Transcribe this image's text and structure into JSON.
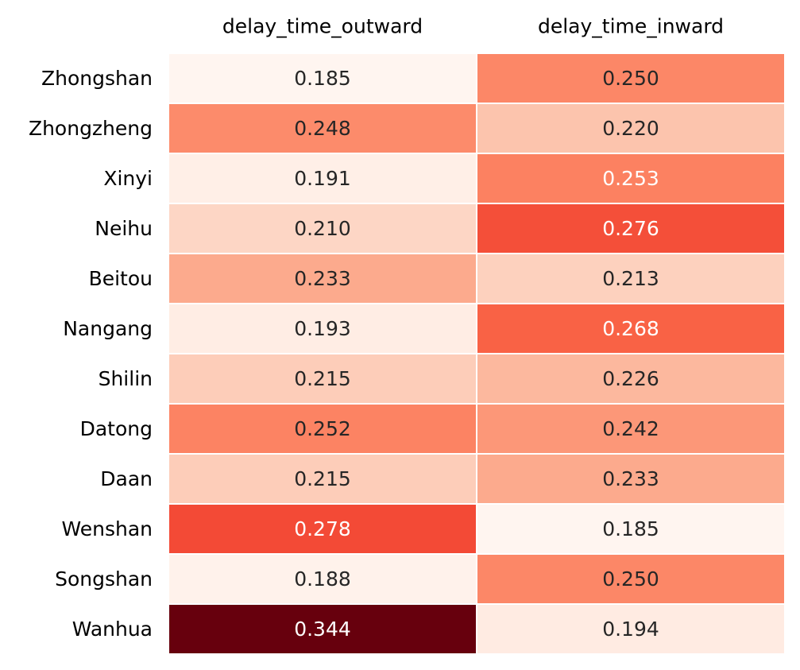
{
  "chart_data": {
    "type": "heatmap",
    "columns": [
      "delay_time_outward",
      "delay_time_inward"
    ],
    "rows": [
      "Zhongshan",
      "Zhongzheng",
      "Xinyi",
      "Neihu",
      "Beitou",
      "Nangang",
      "Shilin",
      "Datong",
      "Daan",
      "Wenshan",
      "Songshan",
      "Wanhua"
    ],
    "values": [
      [
        "0.185",
        "0.250"
      ],
      [
        "0.248",
        "0.220"
      ],
      [
        "0.191",
        "0.253"
      ],
      [
        "0.210",
        "0.276"
      ],
      [
        "0.233",
        "0.213"
      ],
      [
        "0.193",
        "0.268"
      ],
      [
        "0.215",
        "0.226"
      ],
      [
        "0.252",
        "0.242"
      ],
      [
        "0.215",
        "0.233"
      ],
      [
        "0.278",
        "0.185"
      ],
      [
        "0.188",
        "0.250"
      ],
      [
        "0.344",
        "0.194"
      ]
    ],
    "colormap": "Reds",
    "value_range": [
      0.185,
      0.344
    ],
    "grid_line_color": "#ffffff",
    "light_text_color": "#ffffff",
    "dark_text_color": "#262626"
  }
}
